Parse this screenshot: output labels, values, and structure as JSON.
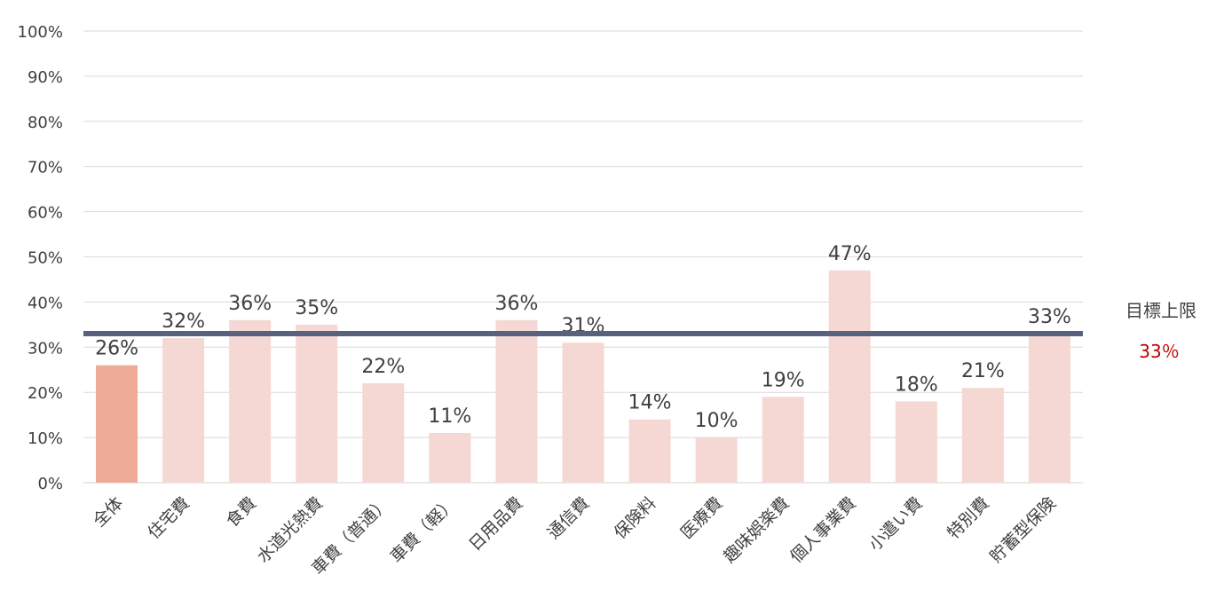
{
  "chart_data": {
    "type": "bar",
    "categories": [
      "全体",
      "住宅費",
      "食費",
      "水道光熱費",
      "車費（普通）",
      "車費（軽）",
      "日用品費",
      "通信費",
      "保険料",
      "医療費",
      "趣味娯楽費",
      "個人事業費",
      "小遣い費",
      "特別費",
      "貯蓄型保険"
    ],
    "values": [
      26,
      32,
      36,
      35,
      22,
      11,
      36,
      31,
      14,
      10,
      19,
      47,
      18,
      21,
      33
    ],
    "value_labels": [
      "26%",
      "32%",
      "36%",
      "35%",
      "22%",
      "11%",
      "36%",
      "31%",
      "14%",
      "10%",
      "19%",
      "47%",
      "18%",
      "21%",
      "33%"
    ],
    "ylim": [
      0,
      100
    ],
    "yticks": [
      "0%",
      "10%",
      "20%",
      "30%",
      "40%",
      "50%",
      "60%",
      "70%",
      "80%",
      "90%",
      "100%"
    ],
    "grid": true,
    "highlight_index": 0,
    "colors": {
      "highlight_bar": "#eeab98",
      "bar": "#f5d8d3",
      "target_line": "#58617e",
      "target_value_text": "#c00000"
    },
    "target": {
      "label": "目標上限",
      "value": 33,
      "value_label": "33％"
    }
  }
}
